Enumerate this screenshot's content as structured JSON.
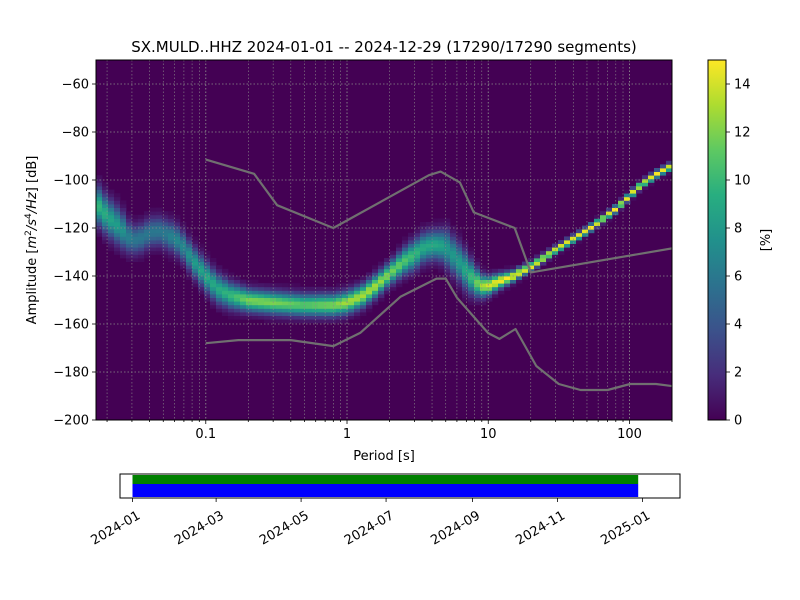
{
  "chart_data": [
    {
      "type": "heatmap",
      "title": "SX.MULD..HHZ   2024-01-01 -- 2024-12-29  (17290/17290 segments)",
      "xlabel": "Period [s]",
      "ylabel_parts": [
        "Amplitude [",
        "m",
        "2",
        "/",
        "s",
        "4",
        "/",
        "Hz",
        "] [dB]"
      ],
      "x_scale": "log",
      "xlim": [
        0.0167,
        200
      ],
      "ylim": [
        -200,
        -50
      ],
      "x_ticks": [
        {
          "value": 0.1,
          "label": "0.1"
        },
        {
          "value": 1,
          "label": "1"
        },
        {
          "value": 10,
          "label": "10"
        },
        {
          "value": 100,
          "label": "100"
        }
      ],
      "y_ticks": [
        {
          "value": -60,
          "label": "−60"
        },
        {
          "value": -80,
          "label": "−80"
        },
        {
          "value": -100,
          "label": "−100"
        },
        {
          "value": -120,
          "label": "−120"
        },
        {
          "value": -140,
          "label": "−140"
        },
        {
          "value": -160,
          "label": "−160"
        },
        {
          "value": -180,
          "label": "−180"
        },
        {
          "value": -200,
          "label": "−200"
        }
      ],
      "grid": true,
      "colorbar": {
        "label": "[%]",
        "min": 0,
        "max": 15,
        "colormap": "viridis",
        "ticks": [
          {
            "value": 0,
            "label": "0"
          },
          {
            "value": 2,
            "label": "2"
          },
          {
            "value": 4,
            "label": "4"
          },
          {
            "value": 6,
            "label": "6"
          },
          {
            "value": 8,
            "label": "8"
          },
          {
            "value": 10,
            "label": "10"
          },
          {
            "value": 12,
            "label": "12"
          },
          {
            "value": 14,
            "label": "14"
          }
        ]
      },
      "mode_curve": {
        "period": [
          0.017,
          0.02,
          0.025,
          0.03,
          0.035,
          0.04,
          0.045,
          0.05,
          0.06,
          0.07,
          0.08,
          0.1,
          0.12,
          0.15,
          0.2,
          0.3,
          0.5,
          0.8,
          1.0,
          1.3,
          1.6,
          2.0,
          2.5,
          3.0,
          3.5,
          4.0,
          4.5,
          5.0,
          6.0,
          7.0,
          8.0,
          9.0,
          10.0,
          12.0,
          15.0,
          20.0,
          30.0,
          50.0,
          80.0,
          120.0,
          160.0,
          200.0
        ],
        "amplitude_db": [
          -110,
          -115,
          -120,
          -125,
          -124,
          -122,
          -121,
          -122,
          -124,
          -128,
          -133,
          -140,
          -145,
          -148,
          -150,
          -151,
          -152,
          -152,
          -151,
          -148,
          -144,
          -139,
          -134,
          -131,
          -128,
          -127,
          -127,
          -128,
          -133,
          -138,
          -142,
          -144,
          -144,
          -142,
          -140,
          -136,
          -129,
          -121,
          -112,
          -102,
          -97,
          -94
        ],
        "spread_db": [
          5,
          5,
          5,
          4,
          4,
          4,
          4,
          4,
          4,
          4,
          4,
          4,
          4,
          3.5,
          3,
          3,
          3,
          3,
          3,
          3,
          3,
          3,
          3.5,
          4,
          4,
          4,
          4,
          5,
          5,
          5,
          4,
          3,
          2.5,
          2,
          1.5,
          1.2,
          1,
          1,
          1,
          1,
          1,
          1
        ],
        "peak_percent": [
          10,
          9,
          8,
          6,
          6,
          6,
          6,
          6,
          7,
          7,
          8,
          9,
          9,
          10,
          12,
          12,
          11,
          12,
          13,
          13,
          13,
          12,
          11,
          10,
          9,
          9,
          9,
          8,
          8,
          9,
          11,
          13,
          14,
          15,
          15,
          15,
          15,
          15,
          15,
          15,
          15,
          15
        ]
      },
      "noise_models": [
        {
          "name": "NHNM",
          "period": [
            0.1,
            0.22,
            0.32,
            0.8,
            3.8,
            4.6,
            6.3,
            7.9,
            15.4,
            20.0,
            354.8
          ],
          "amplitude_db": [
            -91.5,
            -97.4,
            -110.5,
            -120.0,
            -98.0,
            -96.5,
            -101.0,
            -113.5,
            -120.0,
            -138.5,
            -126.0
          ]
        },
        {
          "name": "NLNM",
          "period": [
            0.1,
            0.17,
            0.4,
            0.8,
            1.24,
            2.4,
            4.3,
            5.0,
            6.0,
            10.0,
            12.0,
            15.6,
            21.9,
            31.6,
            45.0,
            70.0,
            101.0,
            154.0,
            328.0
          ],
          "amplitude_db": [
            -168.0,
            -166.7,
            -166.7,
            -169.2,
            -163.7,
            -148.6,
            -141.1,
            -141.1,
            -149.0,
            -163.8,
            -166.2,
            -162.1,
            -177.5,
            -185.0,
            -187.5,
            -187.5,
            -185.0,
            -185.0,
            -187.5
          ]
        }
      ]
    },
    {
      "type": "timeline",
      "x_type": "date",
      "xlim": [
        "2023-12-23",
        "2025-01-28"
      ],
      "coverage_spans": [
        {
          "start": "2024-01-01",
          "end": "2024-12-29",
          "color": "#008000"
        },
        {
          "start": "2024-01-01",
          "end": "2024-12-29",
          "color": "#0000ff"
        }
      ],
      "x_ticks": [
        {
          "value": "2024-01-01",
          "label": "2024-01"
        },
        {
          "value": "2024-03-01",
          "label": "2024-03"
        },
        {
          "value": "2024-05-01",
          "label": "2024-05"
        },
        {
          "value": "2024-07-01",
          "label": "2024-07"
        },
        {
          "value": "2024-09-01",
          "label": "2024-09"
        },
        {
          "value": "2024-11-01",
          "label": "2024-11"
        },
        {
          "value": "2025-01-01",
          "label": "2025-01"
        }
      ]
    }
  ]
}
